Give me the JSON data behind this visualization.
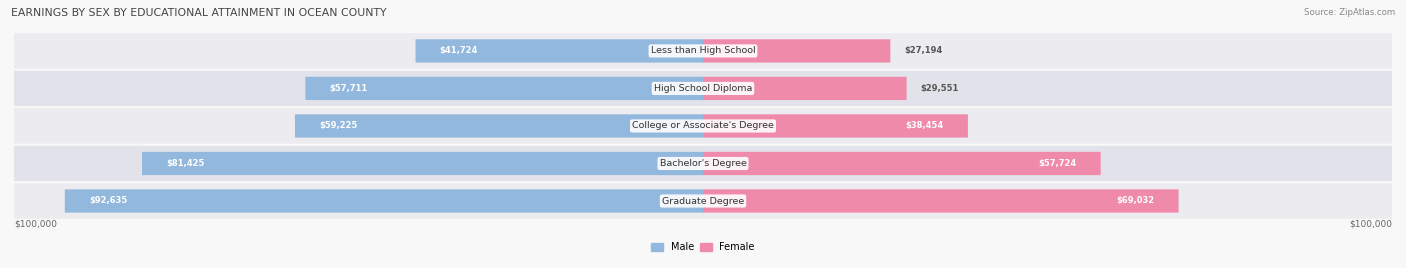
{
  "title": "EARNINGS BY SEX BY EDUCATIONAL ATTAINMENT IN OCEAN COUNTY",
  "source": "Source: ZipAtlas.com",
  "categories": [
    "Less than High School",
    "High School Diploma",
    "College or Associate's Degree",
    "Bachelor's Degree",
    "Graduate Degree"
  ],
  "male_values": [
    41724,
    57711,
    59225,
    81425,
    92635
  ],
  "female_values": [
    27194,
    29551,
    38454,
    57724,
    69032
  ],
  "male_color": "#92b8de",
  "female_color": "#f08aaa",
  "male_label": "Male",
  "female_label": "Female",
  "max_value": 100000,
  "bar_height": 0.62,
  "row_bg_even": "#ebebf0",
  "row_bg_odd": "#e2e2ea",
  "title_color": "#444444",
  "source_color": "#888888",
  "label_color": "#333333",
  "value_inside_color": "#ffffff",
  "value_outside_color": "#555555",
  "axis_tick_label": "$100,000"
}
